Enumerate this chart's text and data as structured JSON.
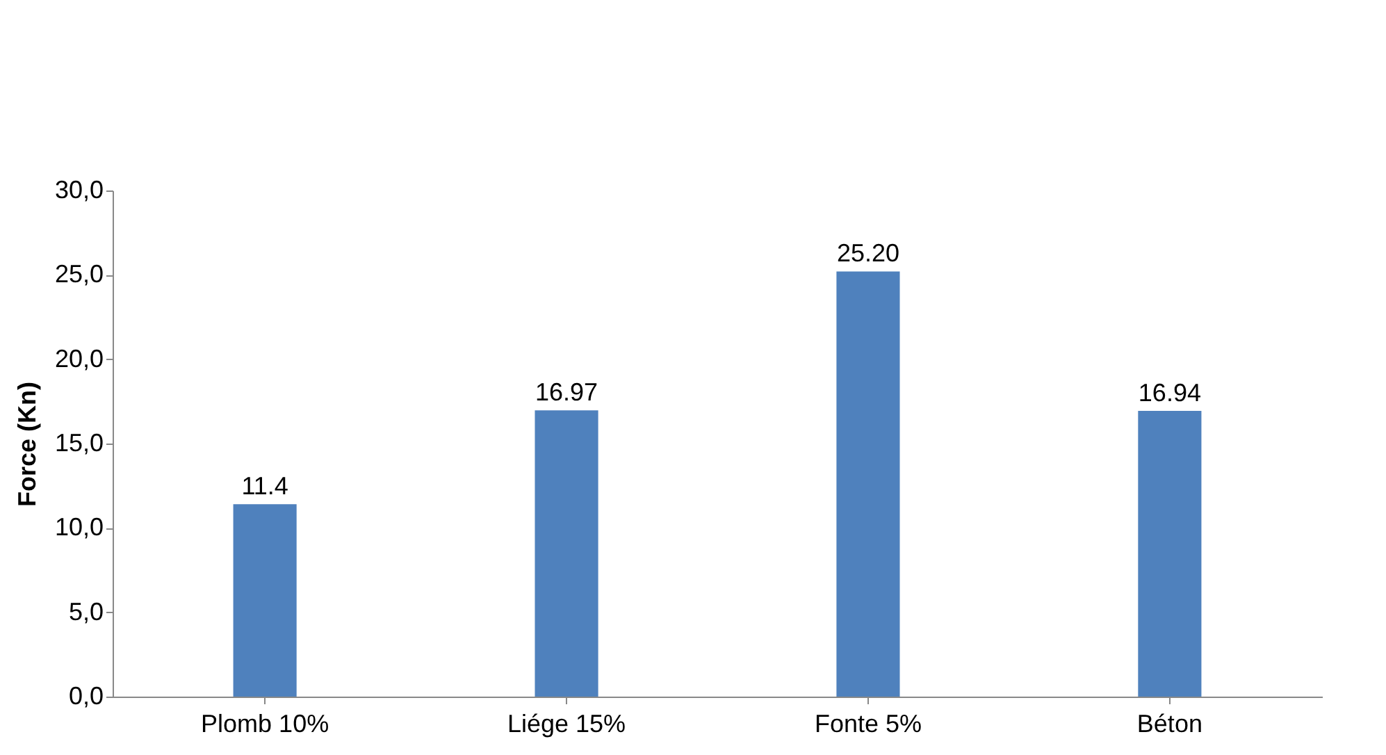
{
  "chart_data": {
    "type": "bar",
    "ylabel": "Force (Kn)",
    "categories": [
      "Plomb 10%",
      "Liége 15%",
      "Fonte 5%",
      "Béton"
    ],
    "values": [
      11.4,
      16.97,
      25.2,
      16.94
    ],
    "value_labels": [
      "11.4",
      "16.97",
      "25.20",
      "16.94"
    ],
    "color": "#4f81bd",
    "ylim": [
      0,
      30
    ],
    "yticks": [
      {
        "value": 0,
        "label": "0,0"
      },
      {
        "value": 5,
        "label": "5,0"
      },
      {
        "value": 10,
        "label": "10,0"
      },
      {
        "value": 15,
        "label": "15,0"
      },
      {
        "value": 20,
        "label": "20,0"
      },
      {
        "value": 25,
        "label": "25,0"
      },
      {
        "value": 30,
        "label": "30,0"
      }
    ],
    "grid": false
  }
}
